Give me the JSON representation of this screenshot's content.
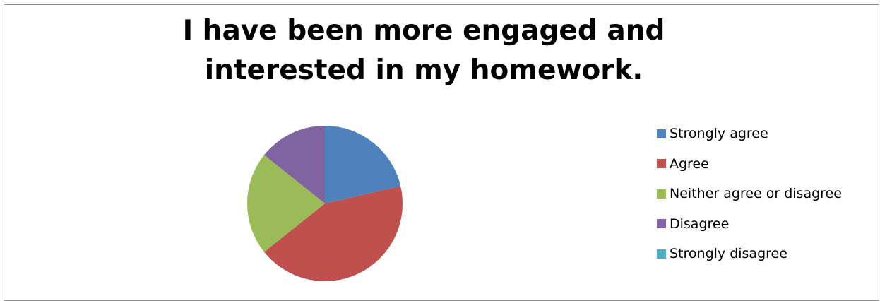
{
  "chart_data": {
    "type": "pie",
    "title": "I have been more engaged and interested in my homework.",
    "categories": [
      "Strongly agree",
      "Agree",
      "Neither agree or disagree",
      "Disagree",
      "Strongly disagree"
    ],
    "values": [
      3,
      6,
      3,
      2,
      0
    ],
    "colors": [
      "#4F81BD",
      "#C0504D",
      "#9BBB59",
      "#8064A2",
      "#4BACC6"
    ],
    "legend": "right"
  }
}
